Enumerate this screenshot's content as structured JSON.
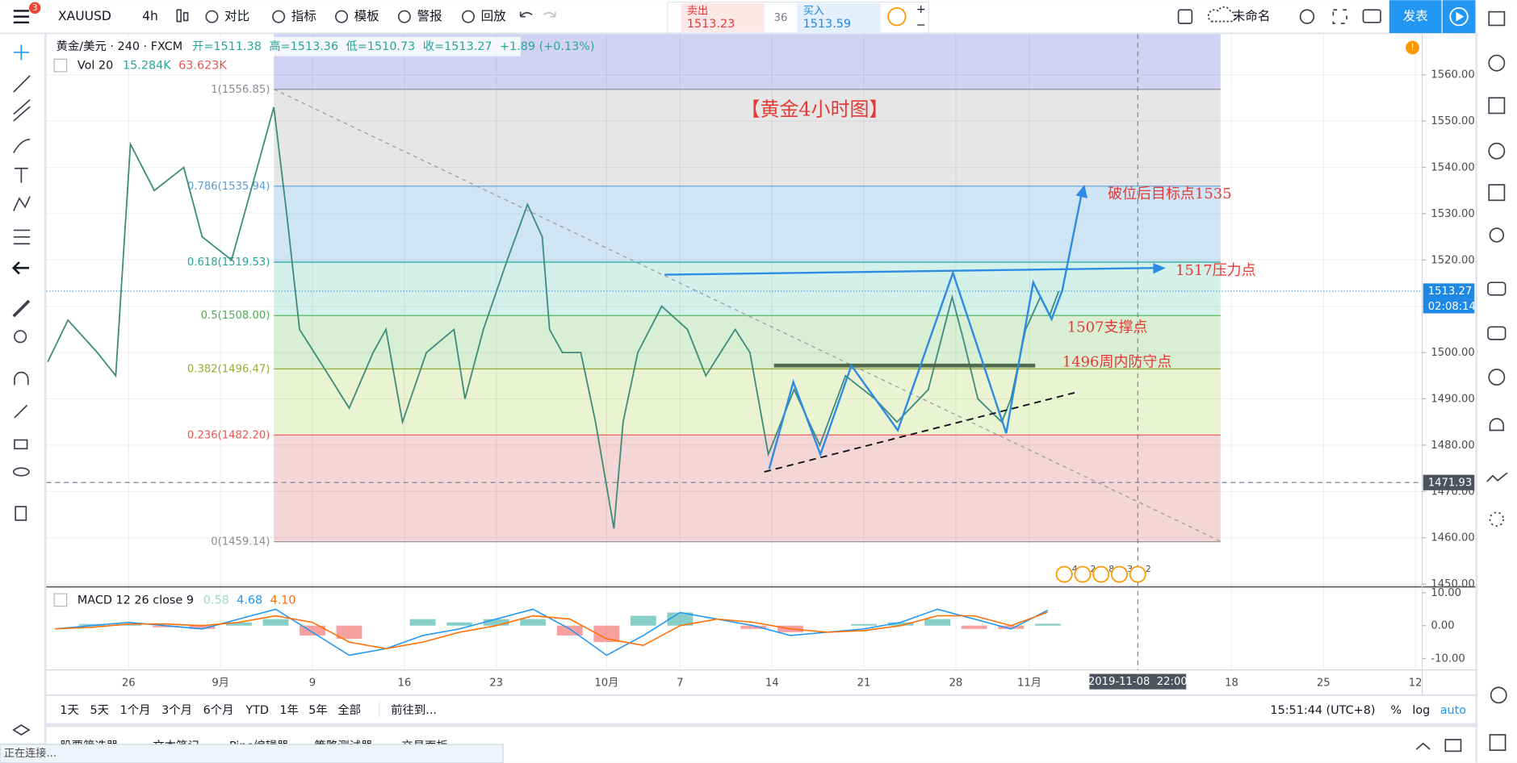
{
  "toolbar": {
    "symbol": "XAUUSD",
    "badge": "3",
    "interval": "4h",
    "buttons": [
      "对比",
      "指标",
      "模板",
      "警报",
      "回放"
    ],
    "sell_label": "卖出",
    "sell_price": "1513.23",
    "spread": "36",
    "buy_label": "买入",
    "buy_price": "1513.59",
    "layout_name": "未命名",
    "publish": "发表"
  },
  "legend": {
    "title": "黄金/美元 · 240 · FXCM",
    "open": "开=1511.38",
    "high": "高=1513.36",
    "low": "低=1510.73",
    "close": "收=1513.27",
    "change": "+1.89 (+0.13%)",
    "volume": "Vol 20",
    "volume_value": "15.284K",
    "volume_ma": "63.623K"
  },
  "annotations": {
    "title": "【黄金4小时图】",
    "target": "破位后目标点1535",
    "resistance": "1517压力点",
    "support": "1507支撑点",
    "defense": "1496周内防守点"
  },
  "events": [
    "4",
    "2",
    "8",
    "3",
    "2"
  ],
  "chart_data": [
    {
      "type": "line",
      "color": "#3d8b7a",
      "x": [
        -4.4,
        -3.3,
        -1.7,
        -0.7,
        -0.3,
        0.1,
        1.4,
        3,
        4,
        5.6,
        7,
        7.9,
        8.6,
        9.3,
        10.9,
        12,
        13.3,
        14,
        14.9,
        16.2,
        17.7,
        18.3,
        19.3,
        20.6,
        21.7,
        22.5,
        22.9,
        23.6,
        24.6,
        25.4,
        26.4,
        26.9,
        27.7,
        29,
        30.4,
        31.4,
        33,
        33.8,
        34.8,
        36.2,
        37.6,
        39,
        40.6,
        41.8,
        43.5,
        44.8,
        45.4,
        46.2,
        47.5,
        48,
        48.8,
        49.6,
        50.1,
        50.6
      ],
      "values": [
        1498,
        1507,
        1500,
        1495,
        1520,
        1545,
        1535,
        1540,
        1525,
        1520,
        1540,
        1553,
        1530,
        1505,
        1495,
        1488,
        1500,
        1505,
        1485,
        1500,
        1505,
        1490,
        1505,
        1520,
        1532,
        1525,
        1505,
        1500,
        1500,
        1485,
        1462,
        1485,
        1500,
        1510,
        1505,
        1495,
        1505,
        1500,
        1478,
        1492,
        1480,
        1495,
        1490,
        1485,
        1492,
        1512,
        1503,
        1490,
        1485,
        1490,
        1505,
        1512,
        1508,
        1513.27
      ],
      "xlim": [
        -4.47,
        70.37
      ],
      "xticks": [
        {
          "value": 0,
          "label": "26"
        },
        {
          "value": 5,
          "label": "9月"
        },
        {
          "value": 10,
          "label": "9"
        },
        {
          "value": 15,
          "label": "16"
        },
        {
          "value": 20,
          "label": "23"
        },
        {
          "value": 26,
          "label": "10月"
        },
        {
          "value": 30,
          "label": "7"
        },
        {
          "value": 35,
          "label": "14"
        },
        {
          "value": 40,
          "label": "21"
        },
        {
          "value": 45,
          "label": "28"
        },
        {
          "value": 49,
          "label": "11月"
        },
        {
          "value": 60,
          "label": "18"
        },
        {
          "value": 65,
          "label": "25"
        },
        {
          "value": 70,
          "label": "12"
        }
      ],
      "ylim": [
        1449.6,
        1568.8
      ],
      "yticks": [
        {
          "value": 1450,
          "label": "1450.00"
        },
        {
          "value": 1460,
          "label": "1460.00"
        },
        {
          "value": 1470,
          "label": "1470.00"
        },
        {
          "value": 1480,
          "label": "1480.00"
        },
        {
          "value": 1490,
          "label": "1490.00"
        },
        {
          "value": 1500,
          "label": "1500.00"
        },
        {
          "value": 1510,
          "label": "1510.00"
        },
        {
          "value": 1520,
          "label": "1520.00"
        },
        {
          "value": 1530,
          "label": "1530.00"
        },
        {
          "value": 1540,
          "label": "1540.00"
        },
        {
          "value": 1550,
          "label": "1550.00"
        },
        {
          "value": 1560,
          "label": "1560.00"
        }
      ],
      "grid": true,
      "fib_start": 7.9,
      "fib_end": 59.4,
      "fib_top_color": "#d2d2f3",
      "fib_levels": [
        {
          "value": 1556.85,
          "label": "1(1556.85)",
          "color": "#8a8d96",
          "band_color": "#e6e6e6"
        },
        {
          "value": 1535.94,
          "label": "0.786(1535.94)",
          "color": "#5b9bd5",
          "band_color": "#cfe5f5"
        },
        {
          "value": 1519.53,
          "label": "0.618(1519.53)",
          "color": "#26a69a",
          "band_color": "#d3f1e9"
        },
        {
          "value": 1508.0,
          "label": "0.5(1508.00)",
          "color": "#4caf50",
          "band_color": "#d9efd3"
        },
        {
          "value": 1496.47,
          "label": "0.382(1496.47)",
          "color": "#9aab2e",
          "band_color": "#eaf3d2"
        },
        {
          "value": 1482.2,
          "label": "0.236(1482.20)",
          "color": "#ef5350",
          "band_color": "#f5d6d6"
        },
        {
          "value": 1459.14,
          "label": "0(1459.14)",
          "color": "#8a8d96"
        }
      ],
      "last_price": {
        "value": 1513.27,
        "label": "1513.27",
        "color": "#1e88e5"
      },
      "countdown": "02:08:14",
      "crosshair_price": {
        "value": 1471.93,
        "label": "1471.93"
      },
      "crosshair_time": {
        "value": 54.9,
        "label": "2019-11-08  22:00"
      }
    },
    {
      "type": "macd",
      "title": "MACD 12 26 close 9",
      "value_labels": [
        "0.58",
        "4.68",
        "4.10"
      ],
      "x": [
        -4,
        -2,
        0,
        2,
        4,
        6,
        8,
        10,
        12,
        14,
        16,
        18,
        20,
        22,
        24,
        26,
        28,
        30,
        32,
        34,
        36,
        38,
        40,
        42,
        44,
        46,
        48,
        50
      ],
      "xlim": [
        -4.47,
        70.37
      ],
      "ylim": [
        -13.2,
        11.2
      ],
      "yticks": [
        {
          "value": 10,
          "label": "10.00"
        },
        {
          "value": 0,
          "label": "0.00"
        },
        {
          "value": -10,
          "label": "-10.00"
        }
      ],
      "series": [
        {
          "kind": "histogram",
          "color": "#26a69a",
          "negative_color": "#ef5350",
          "values": [
            0,
            0.5,
            0.5,
            -0.5,
            -1,
            1,
            2,
            -3,
            -4,
            0,
            2,
            1,
            2,
            2,
            -3,
            -5,
            3,
            4,
            0,
            -1,
            -2,
            0,
            0.5,
            1,
            2,
            -1,
            -1,
            0.58
          ]
        },
        {
          "kind": "line",
          "color": "#2196f3",
          "values": [
            -1,
            0,
            1,
            0,
            -1,
            2,
            5,
            -2,
            -9,
            -7,
            -3,
            -1,
            2,
            5,
            -1,
            -9,
            -3,
            4,
            2,
            0,
            -3,
            -2,
            -1,
            1,
            5,
            2,
            -1,
            4.68
          ]
        },
        {
          "kind": "line",
          "color": "#ff6d00",
          "values": [
            -1,
            -0.5,
            0.5,
            0.5,
            0,
            1,
            3,
            1,
            -5,
            -7,
            -5,
            -2,
            0,
            3,
            2,
            -4,
            -6,
            0,
            2,
            1,
            -1,
            -2,
            -1.5,
            0,
            3,
            3,
            0,
            4.1
          ]
        }
      ]
    }
  ],
  "bottom_bar": {
    "ranges": [
      "1天",
      "5天",
      "1个月",
      "3个月",
      "6个月",
      "YTD",
      "1年",
      "5年",
      "全部"
    ],
    "goto": "前往到...",
    "clock": "15:51:44 (UTC+8)",
    "percent": "%",
    "log": "log",
    "auto": "auto"
  },
  "bottom_tabs": [
    "股票筛选器",
    "文本笔记",
    "Pine编辑器",
    "策略测试器",
    "交易面板"
  ],
  "status": "正在连接..."
}
